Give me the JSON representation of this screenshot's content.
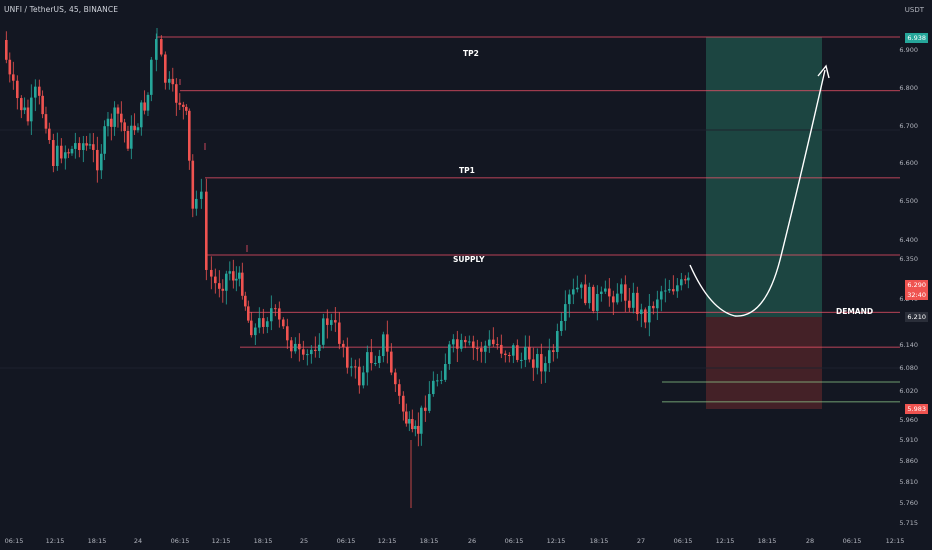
{
  "header": {
    "symbol_line": "UNFI / TetherUS, 45, BINANCE",
    "currency": "USDT"
  },
  "colors": {
    "background": "#131722",
    "up": "#26a69a",
    "down": "#ef5350",
    "zone_line": "#f2526a",
    "demand_line": "#8ec98a",
    "target_zone": "#1f4d47",
    "stop_zone": "#4a2228"
  },
  "annotations": {
    "tp2": "TP2",
    "tp1": "TP1",
    "supply": "SUPPLY",
    "demand": "DEMAND"
  },
  "price_tags": {
    "tp_price": "6.938",
    "current_price": "6.290",
    "countdown": "32:40",
    "entry_price": "6.210",
    "stop_price": "5.983"
  },
  "y_axis_labels": [
    "6.900",
    "6.800",
    "6.700",
    "6.600",
    "6.500",
    "6.400",
    "6.350",
    "6.240",
    "6.140",
    "6.080",
    "6.020",
    "5.960",
    "5.910",
    "5.860",
    "5.810",
    "5.760",
    "5.715"
  ],
  "x_axis_labels": [
    "06:15",
    "12:15",
    "18:15",
    "24",
    "06:15",
    "12:15",
    "18:15",
    "25",
    "06:15",
    "12:15",
    "18:15",
    "26",
    "06:15",
    "12:15",
    "18:15",
    "27",
    "06:15",
    "12:15",
    "18:15",
    "28",
    "06:15",
    "12:15"
  ],
  "chart_data": {
    "type": "candlestick",
    "symbol": "UNFI / TetherUS",
    "interval": "45",
    "exchange": "BINANCE",
    "ylim": [
      5.7,
      6.96
    ],
    "levels": {
      "tp2_top": 6.938,
      "tp2_bottom": 6.83,
      "tp1_top": 6.655,
      "tp1_bottom": 6.5,
      "supply_top": 6.385,
      "supply_bottom": 6.315,
      "demand_top": 6.245,
      "demand_bottom": 6.205
    },
    "position": {
      "entry": 6.21,
      "target": 6.938,
      "stop": 5.983
    }
  }
}
